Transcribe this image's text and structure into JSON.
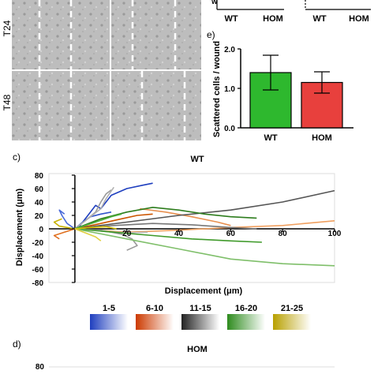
{
  "panels": {
    "micro_labels": [
      "T24",
      "T48"
    ],
    "panel_e_label": "e)",
    "panel_c_label": "c)",
    "panel_d_label": "d)",
    "top_right_categories": [
      "WT",
      "HOM",
      "WT",
      "HOM"
    ]
  },
  "chart_data": [
    {
      "type": "bar",
      "panel": "e",
      "categories": [
        "WT",
        "HOM"
      ],
      "values": [
        1.4,
        1.15
      ],
      "errors": [
        0.44,
        0.27
      ],
      "colors": [
        "#2eb82e",
        "#e8403d"
      ],
      "ylabel": "Scattered cells / wound",
      "ylim": [
        0,
        2
      ],
      "yticks": [
        "0.0",
        "1.0",
        "2.0"
      ]
    },
    {
      "type": "line",
      "panel": "c",
      "title": "WT",
      "xlabel": "Displacement (μm)",
      "ylabel": "Displacement (μm)",
      "xlim": [
        -10,
        100
      ],
      "ylim": [
        -80,
        80
      ],
      "xticks": [
        "20",
        "40",
        "60",
        "80",
        "100"
      ],
      "yticks": [
        "80",
        "60",
        "40",
        "20",
        "0",
        "-20",
        "-40",
        "-60",
        "-80"
      ],
      "series": [
        {
          "color": "#1f3fbf",
          "points": [
            [
              0,
              0
            ],
            [
              2,
              5
            ],
            [
              5,
              20
            ],
            [
              8,
              35
            ],
            [
              10,
              30
            ],
            [
              14,
              50
            ],
            [
              20,
              60
            ],
            [
              26,
              65
            ],
            [
              30,
              68
            ]
          ]
        },
        {
          "color": "#3355cc",
          "points": [
            [
              0,
              0
            ],
            [
              3,
              10
            ],
            [
              6,
              18
            ],
            [
              10,
              22
            ],
            [
              14,
              25
            ]
          ]
        },
        {
          "color": "#4a6ad8",
          "points": [
            [
              0,
              0
            ],
            [
              -3,
              8
            ],
            [
              -5,
              20
            ],
            [
              -6,
              28
            ],
            [
              -4,
              22
            ]
          ]
        },
        {
          "color": "#9a9a9a",
          "points": [
            [
              0,
              0
            ],
            [
              4,
              12
            ],
            [
              8,
              25
            ],
            [
              10,
              40
            ],
            [
              12,
              52
            ],
            [
              14,
              58
            ]
          ]
        },
        {
          "color": "#b0b0b0",
          "points": [
            [
              0,
              0
            ],
            [
              5,
              15
            ],
            [
              10,
              30
            ],
            [
              12,
              45
            ],
            [
              15,
              62
            ]
          ]
        },
        {
          "color": "#cc5500",
          "points": [
            [
              0,
              0
            ],
            [
              10,
              8
            ],
            [
              18,
              15
            ],
            [
              24,
              20
            ],
            [
              30,
              22
            ]
          ]
        },
        {
          "color": "#e07020",
          "points": [
            [
              0,
              0
            ],
            [
              -4,
              -5
            ],
            [
              -8,
              -10
            ],
            [
              -6,
              -15
            ]
          ]
        },
        {
          "color": "#f0a060",
          "points": [
            [
              0,
              0
            ],
            [
              20,
              -5
            ],
            [
              40,
              -2
            ],
            [
              60,
              2
            ],
            [
              80,
              5
            ],
            [
              100,
              12
            ]
          ]
        },
        {
          "color": "#e89050",
          "points": [
            [
              25,
              30
            ],
            [
              35,
              25
            ],
            [
              45,
              18
            ],
            [
              55,
              10
            ],
            [
              60,
              5
            ]
          ]
        },
        {
          "color": "#555555",
          "points": [
            [
              0,
              0
            ],
            [
              20,
              10
            ],
            [
              40,
              20
            ],
            [
              60,
              28
            ],
            [
              80,
              40
            ],
            [
              100,
              57
            ]
          ]
        },
        {
          "color": "#777777",
          "points": [
            [
              0,
              0
            ],
            [
              15,
              5
            ],
            [
              30,
              8
            ],
            [
              45,
              6
            ],
            [
              60,
              2
            ],
            [
              70,
              0
            ]
          ]
        },
        {
          "color": "#999999",
          "points": [
            [
              0,
              0
            ],
            [
              10,
              -2
            ],
            [
              18,
              -8
            ],
            [
              22,
              -15
            ],
            [
              24,
              -25
            ],
            [
              20,
              -32
            ]
          ]
        },
        {
          "color": "#bbbbbb",
          "points": [
            [
              0,
              0
            ],
            [
              12,
              -4
            ],
            [
              20,
              -6
            ],
            [
              28,
              -5
            ]
          ]
        },
        {
          "color": "#2e7d1e",
          "points": [
            [
              0,
              0
            ],
            [
              10,
              15
            ],
            [
              20,
              25
            ],
            [
              30,
              32
            ],
            [
              40,
              28
            ],
            [
              50,
              22
            ],
            [
              60,
              18
            ],
            [
              70,
              16
            ]
          ]
        },
        {
          "color": "#3f9a2a",
          "points": [
            [
              0,
              0
            ],
            [
              15,
              -5
            ],
            [
              30,
              -10
            ],
            [
              45,
              -15
            ],
            [
              60,
              -18
            ],
            [
              72,
              -20
            ]
          ]
        },
        {
          "color": "#7fbf6a",
          "points": [
            [
              0,
              0
            ],
            [
              20,
              -15
            ],
            [
              40,
              -30
            ],
            [
              60,
              -45
            ],
            [
              80,
              -52
            ],
            [
              100,
              -55
            ]
          ]
        },
        {
          "color": "#4caf3a",
          "points": [
            [
              0,
              0
            ],
            [
              8,
              10
            ],
            [
              14,
              18
            ],
            [
              18,
              22
            ]
          ]
        },
        {
          "color": "#c7b000",
          "points": [
            [
              0,
              0
            ],
            [
              -6,
              4
            ],
            [
              -8,
              10
            ],
            [
              -5,
              15
            ]
          ]
        },
        {
          "color": "#d8c400",
          "points": [
            [
              0,
              0
            ],
            [
              6,
              2
            ],
            [
              12,
              3
            ],
            [
              16,
              0
            ]
          ]
        },
        {
          "color": "#e0d040",
          "points": [
            [
              0,
              0
            ],
            [
              4,
              -6
            ],
            [
              8,
              -12
            ],
            [
              10,
              -18
            ]
          ]
        }
      ]
    },
    {
      "type": "line",
      "panel": "d",
      "title": "HOM",
      "yticks": [
        "80"
      ]
    }
  ],
  "legend": {
    "entries": [
      {
        "label": "1-5",
        "color": "#1f3fbf"
      },
      {
        "label": "6-10",
        "color": "#cc3a00"
      },
      {
        "label": "11-15",
        "color": "#555555"
      },
      {
        "label": "16-20",
        "color": "#2e8b1e"
      },
      {
        "label": "21-25",
        "color": "#c7b000"
      }
    ]
  }
}
